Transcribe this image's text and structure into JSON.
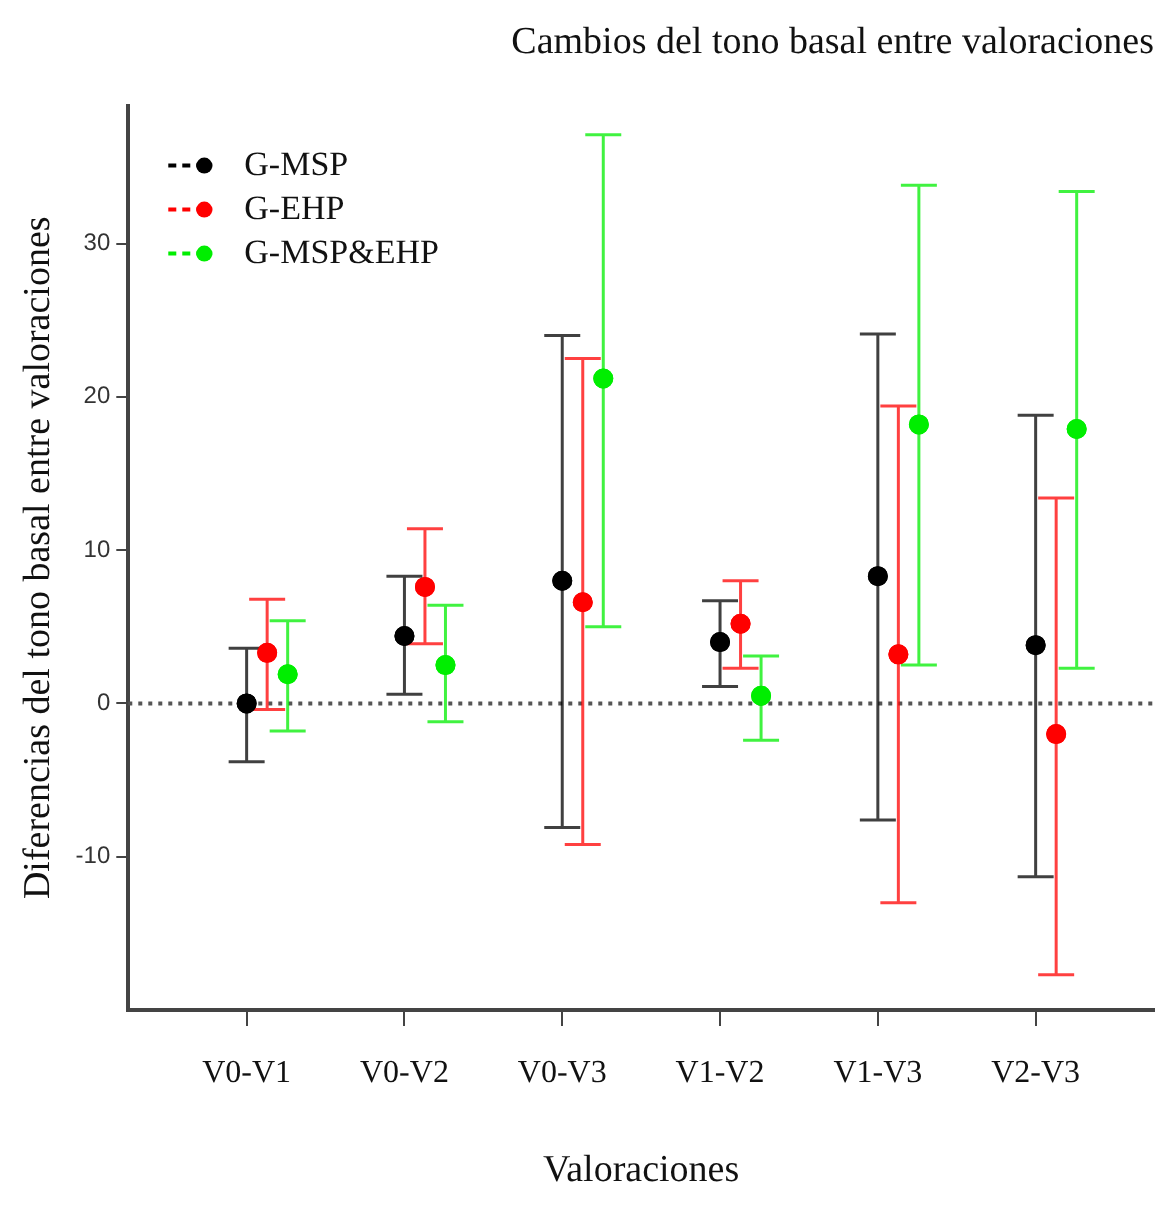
{
  "chart_data": {
    "type": "scatter",
    "title": "Cambios del tono basal entre valoraciones",
    "xlabel": "Valoraciones",
    "ylabel": "Diferencias del tono basal entre valoraciones",
    "categories": [
      "V0-V1",
      "V0-V2",
      "V0-V3",
      "V1-V2",
      "V1-V3",
      "V2-V3"
    ],
    "series": [
      {
        "name": "G-MSP",
        "color": "#000000",
        "values": [
          0,
          4.4,
          8.0,
          4.0,
          8.3,
          3.8
        ],
        "errors": [
          [
            -3.8,
            3.6
          ],
          [
            0.6,
            8.3
          ],
          [
            -8.1,
            24.0
          ],
          [
            1.1,
            6.7
          ],
          [
            -7.6,
            24.1
          ],
          [
            -11.3,
            18.8
          ]
        ]
      },
      {
        "name": "G-EHP",
        "color": "#ff0000",
        "values": [
          3.3,
          7.6,
          6.6,
          5.2,
          3.2,
          -2.0
        ],
        "errors": [
          [
            -0.4,
            6.8
          ],
          [
            3.9,
            11.4
          ],
          [
            -9.2,
            22.5
          ],
          [
            2.3,
            8.0
          ],
          [
            -13.0,
            19.4
          ],
          [
            -17.7,
            13.4
          ]
        ]
      },
      {
        "name": "G-MSP&EHP",
        "color": "#00ee00",
        "values": [
          1.9,
          2.5,
          21.2,
          0.5,
          18.2,
          17.9
        ],
        "errors": [
          [
            -1.8,
            5.4
          ],
          [
            -1.2,
            6.4
          ],
          [
            5.0,
            37.1
          ],
          [
            -2.4,
            3.1
          ],
          [
            2.5,
            33.8
          ],
          [
            2.3,
            33.4
          ]
        ]
      }
    ],
    "ylim": [
      -20,
      39
    ],
    "yticks": [
      -10,
      0,
      10,
      20,
      30
    ],
    "ref_lines": [
      {
        "axis": "y",
        "value": 0,
        "line_style": "dotted",
        "color": "#555555"
      }
    ],
    "marker": "circle",
    "grid": false,
    "legend": "top left"
  }
}
